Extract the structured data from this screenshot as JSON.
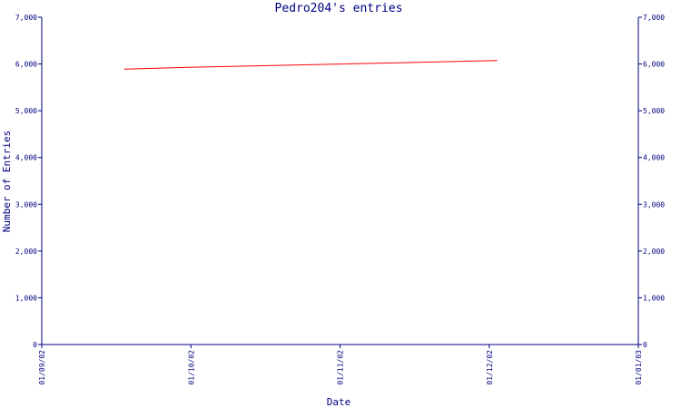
{
  "chart_data": {
    "type": "line",
    "title": "Pedro204's entries",
    "xlabel": "Date",
    "ylabel": "Number of Entries",
    "x_ticks": [
      "01/09/02",
      "01/10/02",
      "01/11/02",
      "01/12/02",
      "01/01/03"
    ],
    "y_ticks": [
      "0",
      "1,000",
      "2,000",
      "3,000",
      "4,000",
      "5,000",
      "6,000",
      "7,000"
    ],
    "ylim": [
      0,
      7000
    ],
    "xlim": [
      "2002-09-01",
      "2003-01-01"
    ],
    "grid": false,
    "series": [
      {
        "color": "#ff0000",
        "points": [
          {
            "date": "2002-09-18",
            "y": 5890
          },
          {
            "date": "2002-10-01",
            "y": 5930
          },
          {
            "date": "2002-10-15",
            "y": 5960
          },
          {
            "date": "2002-11-01",
            "y": 6000
          },
          {
            "date": "2002-11-15",
            "y": 6030
          },
          {
            "date": "2002-12-03",
            "y": 6075
          }
        ]
      }
    ]
  },
  "colors": {
    "axis": "#000080",
    "text": "#000080",
    "series": "#ff0000",
    "background": "#ffffff"
  }
}
